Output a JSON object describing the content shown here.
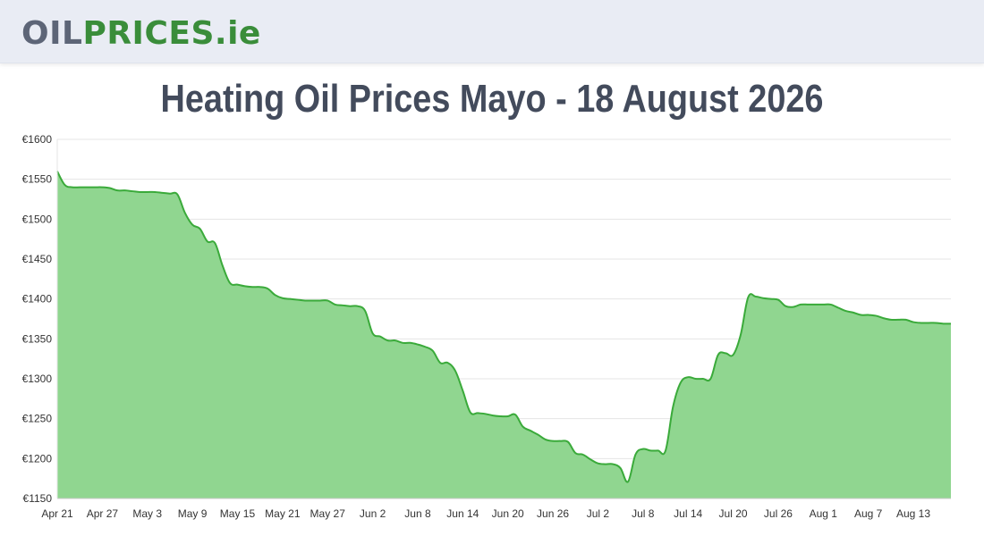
{
  "header": {
    "logo": {
      "part1": "OIL",
      "part2": "PRICES",
      "part3": ".ie"
    }
  },
  "page_title": "Heating Oil Prices Mayo - 18 August 2026",
  "colors": {
    "header_bg": "#e9ecf4",
    "logo_grey": "#5d6577",
    "logo_green": "#3a8d3a",
    "area_fill": "#90d690",
    "line": "#3aaa3a",
    "grid": "#e5e5e5"
  },
  "chart_data": {
    "type": "area",
    "title": "",
    "xlabel": "",
    "ylabel": "",
    "ylim": [
      1150,
      1600
    ],
    "y_ticks": [
      1150,
      1200,
      1250,
      1300,
      1350,
      1400,
      1450,
      1500,
      1550,
      1600
    ],
    "y_tick_labels": [
      "€1150",
      "€1200",
      "€1250",
      "€1300",
      "€1350",
      "€1400",
      "€1450",
      "€1500",
      "€1550",
      "€1600"
    ],
    "x_tick_labels": [
      "Apr 21",
      "Apr 27",
      "May 3",
      "May 9",
      "May 15",
      "May 21",
      "May 27",
      "Jun 2",
      "Jun 8",
      "Jun 14",
      "Jun 20",
      "Jun 26",
      "Jul 2",
      "Jul 8",
      "Jul 14",
      "Jul 20",
      "Jul 26",
      "Aug 1",
      "Aug 7",
      "Aug 13"
    ],
    "grid": true,
    "legend": "none",
    "series": [
      {
        "x": [
          "Apr 21",
          "Apr 22",
          "Apr 23",
          "Apr 24",
          "Apr 25",
          "Apr 26",
          "Apr 27",
          "Apr 28",
          "Apr 29",
          "Apr 30",
          "May 1",
          "May 2",
          "May 3",
          "May 4",
          "May 5",
          "May 6",
          "May 7",
          "May 8",
          "May 9",
          "May 10",
          "May 11",
          "May 12",
          "May 13",
          "May 14",
          "May 15",
          "May 16",
          "May 17",
          "May 18",
          "May 19",
          "May 20",
          "May 21",
          "May 22",
          "May 23",
          "May 24",
          "May 25",
          "May 26",
          "May 27",
          "May 28",
          "May 29",
          "May 30",
          "May 31",
          "Jun 1",
          "Jun 2",
          "Jun 3",
          "Jun 4",
          "Jun 5",
          "Jun 6",
          "Jun 7",
          "Jun 8",
          "Jun 9",
          "Jun 10",
          "Jun 11",
          "Jun 12",
          "Jun 13",
          "Jun 14",
          "Jun 15",
          "Jun 16",
          "Jun 17",
          "Jun 18",
          "Jun 19",
          "Jun 20",
          "Jun 21",
          "Jun 22",
          "Jun 23",
          "Jun 24",
          "Jun 25",
          "Jun 26",
          "Jun 27",
          "Jun 28",
          "Jun 29",
          "Jun 30",
          "Jul 1",
          "Jul 2",
          "Jul 3",
          "Jul 4",
          "Jul 5",
          "Jul 6",
          "Jul 7",
          "Jul 8",
          "Jul 9",
          "Jul 10",
          "Jul 11",
          "Jul 12",
          "Jul 13",
          "Jul 14",
          "Jul 15",
          "Jul 16",
          "Jul 17",
          "Jul 18",
          "Jul 19",
          "Jul 20",
          "Jul 21",
          "Jul 22",
          "Jul 23",
          "Jul 24",
          "Jul 25",
          "Jul 26",
          "Jul 27",
          "Jul 28",
          "Jul 29",
          "Jul 30",
          "Jul 31",
          "Aug 1",
          "Aug 2",
          "Aug 3",
          "Aug 4",
          "Aug 5",
          "Aug 6",
          "Aug 7",
          "Aug 8",
          "Aug 9",
          "Aug 10",
          "Aug 11",
          "Aug 12",
          "Aug 13",
          "Aug 14",
          "Aug 15",
          "Aug 16",
          "Aug 17",
          "Aug 18"
        ],
        "values": [
          1560,
          1543,
          1540,
          1540,
          1540,
          1540,
          1540,
          1539,
          1536,
          1536,
          1535,
          1534,
          1534,
          1534,
          1533,
          1532,
          1531,
          1508,
          1493,
          1488,
          1472,
          1470,
          1442,
          1420,
          1418,
          1416,
          1415,
          1415,
          1413,
          1405,
          1401,
          1400,
          1399,
          1398,
          1398,
          1398,
          1398,
          1393,
          1392,
          1391,
          1391,
          1385,
          1357,
          1353,
          1348,
          1348,
          1345,
          1345,
          1343,
          1340,
          1335,
          1320,
          1320,
          1310,
          1285,
          1258,
          1257,
          1256,
          1254,
          1253,
          1253,
          1255,
          1240,
          1235,
          1230,
          1224,
          1222,
          1222,
          1221,
          1207,
          1205,
          1199,
          1194,
          1193,
          1193,
          1188,
          1171,
          1205,
          1212,
          1210,
          1210,
          1210,
          1265,
          1295,
          1302,
          1300,
          1300,
          1300,
          1330,
          1332,
          1330,
          1355,
          1402,
          1403,
          1401,
          1400,
          1399,
          1391,
          1390,
          1393,
          1393,
          1393,
          1393,
          1393,
          1389,
          1385,
          1383,
          1380,
          1380,
          1379,
          1376,
          1374,
          1374,
          1374,
          1371,
          1370,
          1370,
          1370,
          1369,
          1369
        ]
      }
    ]
  }
}
